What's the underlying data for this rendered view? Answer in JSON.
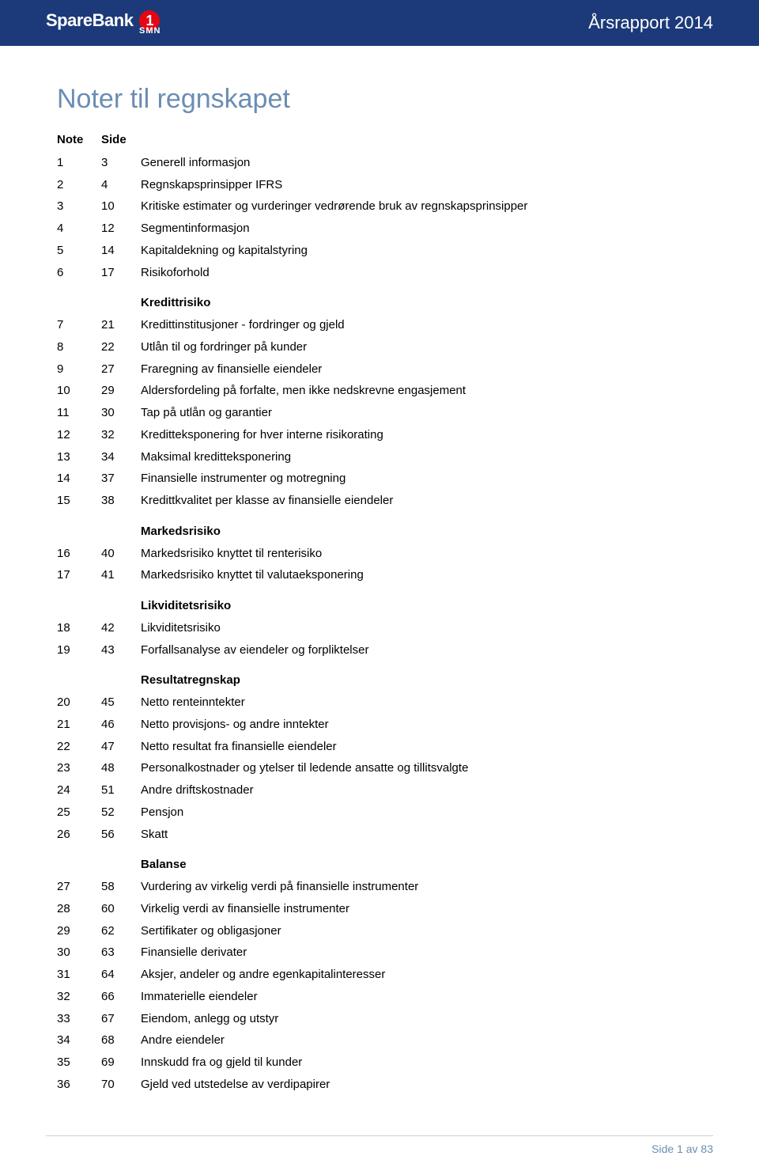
{
  "header": {
    "logo_brand": "SpareBank",
    "logo_badge": "1",
    "logo_sub": "SMN",
    "report_title": "Årsrapport 2014"
  },
  "page_title": "Noter til regnskapet",
  "columns": {
    "note": "Note",
    "side": "Side"
  },
  "sections": [
    {
      "heading": null,
      "rows": [
        {
          "note": "1",
          "side": "3",
          "desc": "Generell informasjon"
        },
        {
          "note": "2",
          "side": "4",
          "desc": "Regnskapsprinsipper IFRS"
        },
        {
          "note": "3",
          "side": "10",
          "desc": "Kritiske estimater og vurderinger vedrørende bruk av regnskapsprinsipper"
        },
        {
          "note": "4",
          "side": "12",
          "desc": "Segmentinformasjon"
        },
        {
          "note": "5",
          "side": "14",
          "desc": "Kapitaldekning og kapitalstyring"
        },
        {
          "note": "6",
          "side": "17",
          "desc": "Risikoforhold"
        }
      ]
    },
    {
      "heading": "Kredittrisiko",
      "rows": [
        {
          "note": "7",
          "side": "21",
          "desc": "Kredittinstitusjoner - fordringer og gjeld"
        },
        {
          "note": "8",
          "side": "22",
          "desc": "Utlån til og fordringer på kunder"
        },
        {
          "note": "9",
          "side": "27",
          "desc": "Fraregning av finansielle eiendeler"
        },
        {
          "note": "10",
          "side": "29",
          "desc": "Aldersfordeling på forfalte, men ikke nedskrevne engasjement"
        },
        {
          "note": "11",
          "side": "30",
          "desc": "Tap på utlån og garantier"
        },
        {
          "note": "12",
          "side": "32",
          "desc": "Kreditteksponering for hver interne risikorating"
        },
        {
          "note": "13",
          "side": "34",
          "desc": "Maksimal kreditteksponering"
        },
        {
          "note": "14",
          "side": "37",
          "desc": "Finansielle instrumenter og motregning"
        },
        {
          "note": "15",
          "side": "38",
          "desc": "Kredittkvalitet per klasse av finansielle eiendeler"
        }
      ]
    },
    {
      "heading": "Markedsrisiko",
      "rows": [
        {
          "note": "16",
          "side": "40",
          "desc": "Markedsrisiko knyttet til renterisiko"
        },
        {
          "note": "17",
          "side": "41",
          "desc": "Markedsrisiko knyttet til valutaeksponering"
        }
      ]
    },
    {
      "heading": "Likviditetsrisiko",
      "rows": [
        {
          "note": "18",
          "side": "42",
          "desc": "Likviditetsrisiko"
        },
        {
          "note": "19",
          "side": "43",
          "desc": "Forfallsanalyse av eiendeler og forpliktelser"
        }
      ]
    },
    {
      "heading": "Resultatregnskap",
      "rows": [
        {
          "note": "20",
          "side": "45",
          "desc": "Netto renteinntekter"
        },
        {
          "note": "21",
          "side": "46",
          "desc": "Netto provisjons- og andre inntekter"
        },
        {
          "note": "22",
          "side": "47",
          "desc": "Netto resultat fra finansielle eiendeler"
        },
        {
          "note": "23",
          "side": "48",
          "desc": "Personalkostnader og ytelser til ledende ansatte og tillitsvalgte"
        },
        {
          "note": "24",
          "side": "51",
          "desc": "Andre driftskostnader"
        },
        {
          "note": "25",
          "side": "52",
          "desc": "Pensjon"
        },
        {
          "note": "26",
          "side": "56",
          "desc": "Skatt"
        }
      ]
    },
    {
      "heading": "Balanse",
      "rows": [
        {
          "note": "27",
          "side": "58",
          "desc": "Vurdering av virkelig verdi på finansielle instrumenter"
        },
        {
          "note": "28",
          "side": "60",
          "desc": "Virkelig verdi av finansielle instrumenter"
        },
        {
          "note": "29",
          "side": "62",
          "desc": "Sertifikater og obligasjoner"
        },
        {
          "note": "30",
          "side": "63",
          "desc": "Finansielle derivater"
        },
        {
          "note": "31",
          "side": "64",
          "desc": "Aksjer, andeler og andre egenkapitalinteresser"
        },
        {
          "note": "32",
          "side": "66",
          "desc": "Immaterielle eiendeler"
        },
        {
          "note": "33",
          "side": "67",
          "desc": "Eiendom, anlegg og utstyr"
        },
        {
          "note": "34",
          "side": "68",
          "desc": "Andre eiendeler"
        },
        {
          "note": "35",
          "side": "69",
          "desc": "Innskudd fra og gjeld til kunder"
        },
        {
          "note": "36",
          "side": "70",
          "desc": "Gjeld ved utstedelse av verdipapirer"
        }
      ]
    }
  ],
  "footer": "Side 1 av 83"
}
